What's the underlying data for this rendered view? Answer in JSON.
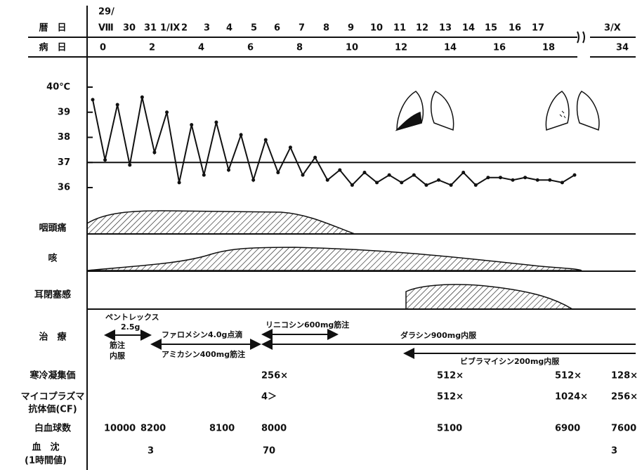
{
  "rows": {
    "calendar": "暦　日",
    "disease_day": "病　日",
    "pharyngalgia": "咽頭痛",
    "cough": "咳",
    "ear": "耳閉塞感",
    "treatment": "治　療",
    "cold_agglutinin": "寒冷凝集価",
    "mycoplasma_1": "マイコプラズマ",
    "mycoplasma_2": "抗体価(CF)",
    "wbc": "白血球数",
    "esr_1": "血　沈",
    "esr_2": "(1時間値)"
  },
  "calendar_top": "29/",
  "calendar": [
    "Ⅷ",
    "30",
    "31",
    "1/Ⅸ",
    "2",
    "3",
    "4",
    "5",
    "6",
    "7",
    "8",
    "9",
    "10",
    "11",
    "12",
    "13",
    "14",
    "15",
    "16",
    "17",
    "3/Ⅹ"
  ],
  "disease_days": [
    0,
    2,
    4,
    6,
    8,
    10,
    12,
    14,
    16,
    18,
    34
  ],
  "temperature": {
    "x": [
      0,
      0.5,
      1,
      1.5,
      2,
      2.5,
      3,
      3.5,
      4,
      4.5,
      5,
      5.5,
      6,
      6.5,
      7,
      7.5,
      8,
      8.5,
      9,
      9.5,
      10,
      10.5,
      11,
      11.5,
      12,
      12.5,
      13,
      13.5,
      14,
      14.5,
      15,
      15.5,
      16,
      16.5,
      17,
      17.5,
      18,
      18.5,
      19,
      19.5
    ],
    "values": [
      39.5,
      37.1,
      39.3,
      36.9,
      39.6,
      37.4,
      39.0,
      36.2,
      38.5,
      36.5,
      38.6,
      36.7,
      38.1,
      36.3,
      37.9,
      36.6,
      37.6,
      36.5,
      37.2,
      36.3,
      36.7,
      36.1,
      36.6,
      36.2,
      36.5,
      36.2,
      36.5,
      36.1,
      36.3,
      36.1,
      36.6,
      36.1,
      36.4,
      36.4,
      36.3,
      36.4,
      36.3,
      36.3,
      36.2,
      36.5
    ],
    "xlim": [
      0,
      19.5
    ],
    "ylim": [
      36,
      40
    ],
    "yticks": [
      {
        "value": 40,
        "label": "40℃"
      },
      39,
      38,
      37,
      36
    ]
  },
  "treatments": {
    "pentrex": "ペントレックス",
    "pentrex_dose": "2.5g",
    "im": "筋注",
    "po": "内服",
    "fa": "ファロメシン4.0g点滴",
    "amikacin": "アミカシン400mg筋注",
    "lincocin": "リニコシン600mg筋注",
    "dalacin": "ダラシン900mg内服",
    "vibramycin": "ビブラマイシン200mg内服"
  },
  "labs": {
    "cold_agglutinin": [
      "256×",
      "512×",
      "512×",
      "128×"
    ],
    "mycoplasma": [
      "4＞",
      "512×",
      "1024×",
      "256×"
    ],
    "wbc": [
      "10000",
      "8200",
      "8100",
      "8000",
      "5100",
      "6900",
      "7600"
    ],
    "esr": [
      "3",
      "70",
      "3"
    ]
  }
}
